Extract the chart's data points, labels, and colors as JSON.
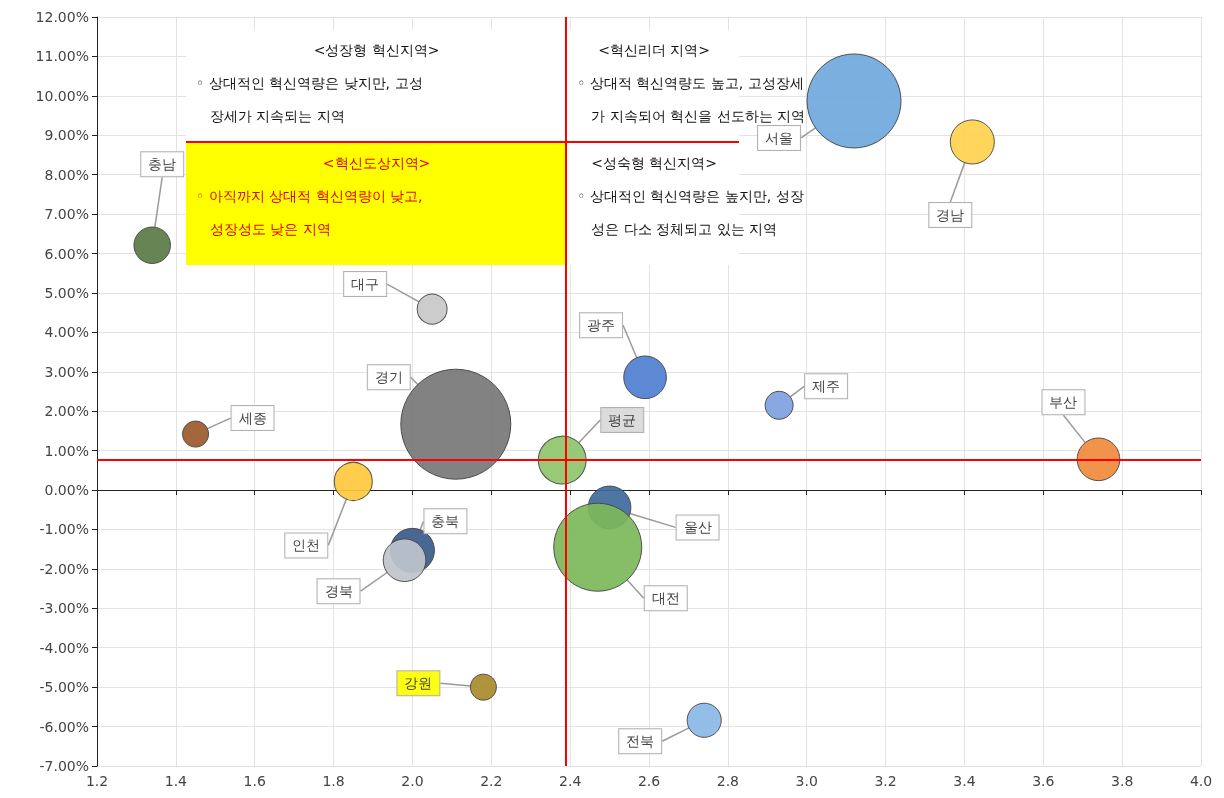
{
  "chart_data": {
    "type": "bubble",
    "grid": true,
    "marker": "circle",
    "xlim": [
      1.2,
      4.0
    ],
    "xticks": [
      1.2,
      1.4,
      1.6,
      1.8,
      {
        "value": 2,
        "label": "2.0"
      },
      2.2,
      2.4,
      2.6,
      2.8,
      {
        "value": 3,
        "label": "3.0"
      },
      3.2,
      3.4,
      3.6,
      3.8,
      {
        "value": 4,
        "label": "4.0"
      }
    ],
    "ylim": [
      -7,
      12
    ],
    "yticks": [
      {
        "value": -7,
        "label": "-7.00%"
      },
      {
        "value": -6,
        "label": "-6.00%"
      },
      {
        "value": -5,
        "label": "-5.00%"
      },
      {
        "value": -4,
        "label": "-4.00%"
      },
      {
        "value": -3,
        "label": "-3.00%"
      },
      {
        "value": -2,
        "label": "-2.00%"
      },
      {
        "value": -1,
        "label": "-1.00%"
      },
      {
        "value": 0,
        "label": "0.00%"
      },
      {
        "value": 1,
        "label": "1.00%"
      },
      {
        "value": 2,
        "label": "2.00%"
      },
      {
        "value": 3,
        "label": "3.00%"
      },
      {
        "value": 4,
        "label": "4.00%"
      },
      {
        "value": 5,
        "label": "5.00%"
      },
      {
        "value": 6,
        "label": "6.00%"
      },
      {
        "value": 7,
        "label": "7.00%"
      },
      {
        "value": 8,
        "label": "8.00%"
      },
      {
        "value": 9,
        "label": "9.00%"
      },
      {
        "value": 10,
        "label": "10.00%"
      },
      {
        "value": 11,
        "label": "11.00%"
      },
      {
        "value": 12,
        "label": "12.00%"
      }
    ],
    "ref_lines": [
      {
        "axis": "x",
        "value": 2.39,
        "color": "#ff0000",
        "line_style": "solid"
      },
      {
        "axis": "y",
        "value": 0.78,
        "color": "#ff0000",
        "line_style": "solid"
      }
    ],
    "annotations": [
      "<성장형 혁신지역>\n◦ 상대적인 혁신역량은 낮지만, 고성\n장세가 지속되는 지역",
      "<혁신리더 지역>\n◦ 상대적 혁신역량도 높고, 고성장세\n가 지속되어 혁신을 선도하는 지역",
      "<혁신도상지역>\n◦ 아직까지 상대적 혁신역량이 낮고,\n성장성도 낮은 지역",
      "<성숙형 혁신지역>\n◦ 상대적인 혁신역량은 높지만, 성장\n성은 다소 정체되고 있는 지역"
    ],
    "series": [
      {
        "name": "서울",
        "color": "#6fa8dc",
        "x": [
          3.12
        ],
        "values": [
          9.87
        ],
        "sizes": [
          0.73
        ]
      },
      {
        "name": "경남",
        "color": "#ffd24d",
        "x": [
          3.42
        ],
        "values": [
          8.83
        ],
        "sizes": [
          0.16
        ]
      },
      {
        "name": "충남",
        "color": "#5a7a45",
        "x": [
          1.34
        ],
        "values": [
          6.21
        ],
        "sizes": [
          0.11
        ]
      },
      {
        "name": "대구",
        "color": "#c8c8c8",
        "x": [
          2.05
        ],
        "values": [
          4.59
        ],
        "sizes": [
          0.074
        ]
      },
      {
        "name": "광주",
        "color": "#4f7fd0",
        "x": [
          2.59
        ],
        "values": [
          2.86
        ],
        "sizes": [
          0.15
        ]
      },
      {
        "name": "제주",
        "color": "#7f9fe0",
        "x": [
          2.93
        ],
        "values": [
          2.15
        ],
        "sizes": [
          0.065
        ]
      },
      {
        "name": "부산",
        "color": "#f08a3c",
        "x": [
          3.74
        ],
        "values": [
          0.78
        ],
        "sizes": [
          0.15
        ]
      },
      {
        "name": "세종",
        "color": "#9c5a2c",
        "x": [
          1.45
        ],
        "values": [
          1.42
        ],
        "sizes": [
          0.056
        ]
      },
      {
        "name": "경기",
        "color": "#777777",
        "x": [
          2.11
        ],
        "values": [
          1.67
        ],
        "sizes": [
          1
        ]
      },
      {
        "name": "평균",
        "color": "#8fc46a",
        "x": [
          2.38
        ],
        "values": [
          0.76
        ],
        "sizes": [
          0.19
        ]
      },
      {
        "name": "인천",
        "color": "#ffc93c",
        "x": [
          1.85
        ],
        "values": [
          0.22
        ],
        "sizes": [
          0.12
        ]
      },
      {
        "name": "울산",
        "color": "#3f6a9c",
        "x": [
          2.5
        ],
        "values": [
          -0.44
        ],
        "sizes": [
          0.15
        ]
      },
      {
        "name": "대전",
        "color": "#7cb85a",
        "x": [
          2.47
        ],
        "values": [
          -1.45
        ],
        "sizes": [
          0.64
        ]
      },
      {
        "name": "충북",
        "color": "#3a5a8a",
        "x": [
          2.0
        ],
        "values": [
          -1.53
        ],
        "sizes": [
          0.16
        ]
      },
      {
        "name": "경북",
        "color": "#bfc4cc",
        "x": [
          1.98
        ],
        "values": [
          -1.78
        ],
        "sizes": [
          0.15
        ]
      },
      {
        "name": "강원",
        "color": "#a88a2c",
        "x": [
          2.18
        ],
        "values": [
          -5.0
        ],
        "sizes": [
          0.056
        ]
      },
      {
        "name": "전북",
        "color": "#8ab8e8",
        "x": [
          2.74
        ],
        "values": [
          -5.84
        ],
        "sizes": [
          0.096
        ]
      }
    ]
  }
}
